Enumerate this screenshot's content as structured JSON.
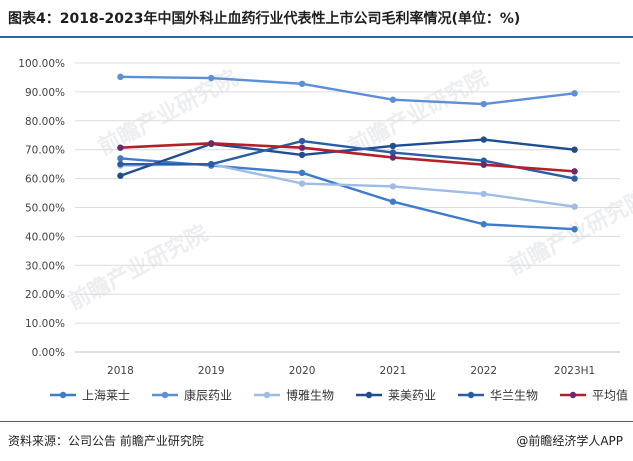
{
  "title": "图表4：2018-2023年中国外科止血药行业代表性上市公司毛利率情况(单位：%)",
  "source": "资料来源：公司公告 前瞻产业研究院",
  "credit": "@前瞻经济学人APP",
  "watermark": "前瞻产业研究院",
  "chart_data": {
    "type": "line",
    "title": "图表4：2018-2023年中国外科止血药行业代表性上市公司毛利率情况(单位：%)",
    "xlabel": "",
    "ylabel": "",
    "categories": [
      "2018",
      "2019",
      "2020",
      "2021",
      "2022",
      "2023H1"
    ],
    "ylim": [
      0,
      100
    ],
    "yticks": [
      "0.00%",
      "10.00%",
      "20.00%",
      "30.00%",
      "40.00%",
      "50.00%",
      "60.00%",
      "70.00%",
      "80.00%",
      "90.00%",
      "100.00%"
    ],
    "grid": true,
    "legend_position": "bottom",
    "series": [
      {
        "name": "上海莱士",
        "color": "#3d7ccc",
        "values": [
          67,
          64.5,
          62,
          52,
          44.2,
          42.5
        ]
      },
      {
        "name": "康辰药业",
        "color": "#5b8fd6",
        "values": [
          95.2,
          94.8,
          92.8,
          87.3,
          85.8,
          89.5
        ]
      },
      {
        "name": "博雅生物",
        "color": "#9dbce6",
        "values": [
          64.5,
          65,
          58.3,
          57.3,
          54.7,
          50.3
        ]
      },
      {
        "name": "莱美药业",
        "color": "#1f4e8f",
        "values": [
          61,
          72,
          68.2,
          71.3,
          73.5,
          70
        ]
      },
      {
        "name": "华兰生物",
        "color": "#2b5ca8",
        "values": [
          65,
          65,
          73,
          69,
          66.2,
          60
        ]
      },
      {
        "name": "平均值",
        "color": "#b3202a",
        "values": [
          70.7,
          72.2,
          70.7,
          67.3,
          64.8,
          62.5
        ]
      }
    ]
  }
}
